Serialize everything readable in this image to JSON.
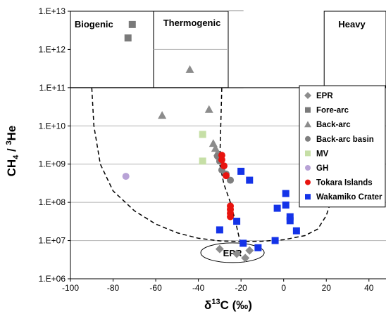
{
  "chart_data": {
    "type": "scatter",
    "xlabel": "δ13C (‰)",
    "ylabel": "CH4 / 3He",
    "x_ticks": [
      "-100",
      "-80",
      "-60",
      "-40",
      "-20",
      "0",
      "20",
      "40"
    ],
    "y_ticks": [
      "1.E+06",
      "1.E+07",
      "1.E+08",
      "1.E+09",
      "1.E+10",
      "1.E+11",
      "1.E+12",
      "1.E+13"
    ],
    "xlim": [
      -100,
      48
    ],
    "ylim": [
      1000000.0,
      10000000000000.0
    ],
    "y_scale": "log",
    "grid": "horizontal",
    "legend_position": "right",
    "regions": [
      {
        "name": "Biogenic",
        "x_range": [
          -100,
          -61
        ],
        "y_range": [
          100000000000.0,
          10000000000000.0
        ]
      },
      {
        "name": "Thermogenic",
        "x_range": [
          -61,
          -81
        ],
        "y_range": [
          100000000000.0,
          10000000000000.0
        ]
      },
      {
        "name": "Heavy",
        "x_range": [
          19,
          48
        ],
        "y_range": [
          100000000000.0,
          10000000000000.0
        ]
      }
    ],
    "epr_label": "EPR",
    "series": [
      {
        "name": "EPR",
        "marker": "diamond",
        "color": "#8c8c8c",
        "points": [
          [
            -30,
            6000000.0
          ],
          [
            -22,
            4500000.0
          ],
          [
            -18,
            3500000.0
          ],
          [
            -16,
            5500000.0
          ]
        ]
      },
      {
        "name": "Fore-arc",
        "marker": "square",
        "color": "#7a7a7a",
        "points": [
          [
            -73,
            2000000000000.0
          ],
          [
            -71,
            4500000000000.0
          ]
        ]
      },
      {
        "name": "Back-arc",
        "marker": "triangle",
        "color": "#8c8c8c",
        "points": [
          [
            -44,
            300000000000.0
          ],
          [
            -57,
            19000000000.0
          ],
          [
            -35,
            27000000000.0
          ],
          [
            -33,
            3500000000.0
          ],
          [
            -32,
            2600000000.0
          ],
          [
            -31,
            2000000000.0
          ]
        ]
      },
      {
        "name": "Back-arc basin",
        "marker": "circle",
        "color": "#7f7f7f",
        "points": [
          [
            -31,
            1600000000.0
          ],
          [
            -30,
            1200000000.0
          ],
          [
            -28,
            900000000.0
          ],
          [
            -29,
            700000000.0
          ],
          [
            -27,
            550000000.0
          ],
          [
            -25,
            380000000.0
          ]
        ]
      },
      {
        "name": "MV",
        "marker": "square",
        "color": "#c6dfa6",
        "points": [
          [
            -38,
            6000000000.0
          ],
          [
            -38,
            1200000000.0
          ]
        ]
      },
      {
        "name": "GH",
        "marker": "circle",
        "color": "#b8a2d6",
        "points": [
          [
            -74,
            480000000.0
          ]
        ]
      },
      {
        "name": "Tokara Islands",
        "marker": "circle",
        "color": "#e8140f",
        "points": [
          [
            -29,
            1700000000.0
          ],
          [
            -29,
            1300000000.0
          ],
          [
            -28,
            900000000.0
          ],
          [
            -27,
            500000000.0
          ],
          [
            -25,
            80000000.0
          ],
          [
            -25,
            65000000.0
          ],
          [
            -25,
            52000000.0
          ],
          [
            -25,
            42000000.0
          ]
        ]
      },
      {
        "name": "Wakamiko Crater",
        "marker": "square",
        "color": "#1433e8",
        "points": [
          [
            -20,
            650000000.0
          ],
          [
            -16,
            380000000.0
          ],
          [
            -22,
            32000000.0
          ],
          [
            -30,
            19000000.0
          ],
          [
            -19,
            8500000.0
          ],
          [
            -12,
            6500000.0
          ],
          [
            -4,
            10000000.0
          ],
          [
            -3,
            70000000.0
          ],
          [
            1,
            85000000.0
          ],
          [
            1,
            170000000.0
          ],
          [
            3,
            42000000.0
          ],
          [
            3,
            33000000.0
          ],
          [
            6,
            18000000.0
          ]
        ]
      }
    ]
  }
}
